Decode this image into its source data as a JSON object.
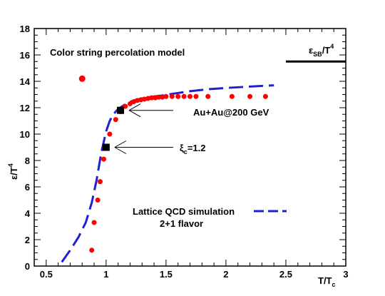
{
  "chart_data": {
    "type": "scatter",
    "xlim": [
      0.4,
      3.0
    ],
    "ylim": [
      0,
      18
    ],
    "x_ticks": [
      "0.5",
      "1",
      "1.5",
      "2",
      "2.5",
      "3"
    ],
    "y_ticks": [
      "0",
      "2",
      "4",
      "6",
      "8",
      "10",
      "12",
      "14",
      "16",
      "18"
    ],
    "xlabel": {
      "main": "T/T",
      "sub": "c"
    },
    "ylabel": {
      "main": "ε/T",
      "sup": "4"
    },
    "title": "Color string percolation model",
    "grid": false,
    "series": [
      {
        "name": "Color string percolation model",
        "style": "markers",
        "color": "#ff0000",
        "x": [
          0.8,
          0.88,
          0.9,
          0.93,
          0.95,
          0.98,
          1.03,
          1.08,
          1.12,
          1.16,
          1.2,
          1.23,
          1.26,
          1.29,
          1.32,
          1.35,
          1.38,
          1.41,
          1.44,
          1.47,
          1.5,
          1.55,
          1.6,
          1.65,
          1.7,
          1.75,
          1.85,
          2.05,
          2.2,
          2.33
        ],
        "y": [
          14.2,
          1.2,
          3.3,
          5.0,
          6.4,
          8.1,
          10.0,
          11.1,
          11.7,
          12.1,
          12.3,
          12.45,
          12.55,
          12.6,
          12.65,
          12.7,
          12.75,
          12.75,
          12.8,
          12.8,
          12.85,
          12.85,
          12.85,
          12.85,
          12.85,
          12.85,
          12.85,
          12.85,
          12.85,
          12.85
        ]
      },
      {
        "name": "Lattice QCD simulation",
        "style": "dashed-line",
        "color": "#1f1fd6",
        "x": [
          0.63,
          0.7,
          0.77,
          0.83,
          0.88,
          0.92,
          0.96,
          1.0,
          1.03,
          1.06,
          1.1,
          1.15,
          1.2,
          1.25,
          1.35,
          1.45,
          1.55,
          1.7,
          1.85,
          2.0,
          2.2,
          2.4
        ],
        "y": [
          0.3,
          1.2,
          2.2,
          3.3,
          4.8,
          6.5,
          8.6,
          10.2,
          11.0,
          11.5,
          11.9,
          12.2,
          12.45,
          12.6,
          12.8,
          12.9,
          13.05,
          13.25,
          13.4,
          13.5,
          13.6,
          13.7
        ]
      },
      {
        "name": "Au+Au@200 GeV / ξc=1.2",
        "style": "square-markers",
        "color": "#000000",
        "x": [
          1.12,
          1.0
        ],
        "y": [
          11.8,
          9.0
        ]
      }
    ],
    "stefan_boltzmann": {
      "y": 15.5,
      "x_range": [
        2.5,
        3.0
      ]
    },
    "annotations": [
      {
        "text": "Au+Au@200 GeV",
        "arrow_to": [
          1.12,
          11.8
        ]
      },
      {
        "text_main": "ξ",
        "text_sub": "c",
        "text_rest": "=1.2",
        "arrow_to": [
          1.0,
          9.0
        ]
      }
    ],
    "legend": {
      "placement": "bottom-right",
      "label_line1": "Lattice QCD simulation",
      "label_line2": "2+1 flavor"
    },
    "sb_label": {
      "main": "ε",
      "sub": "SB",
      "slash": "/T",
      "sup": "4"
    }
  }
}
